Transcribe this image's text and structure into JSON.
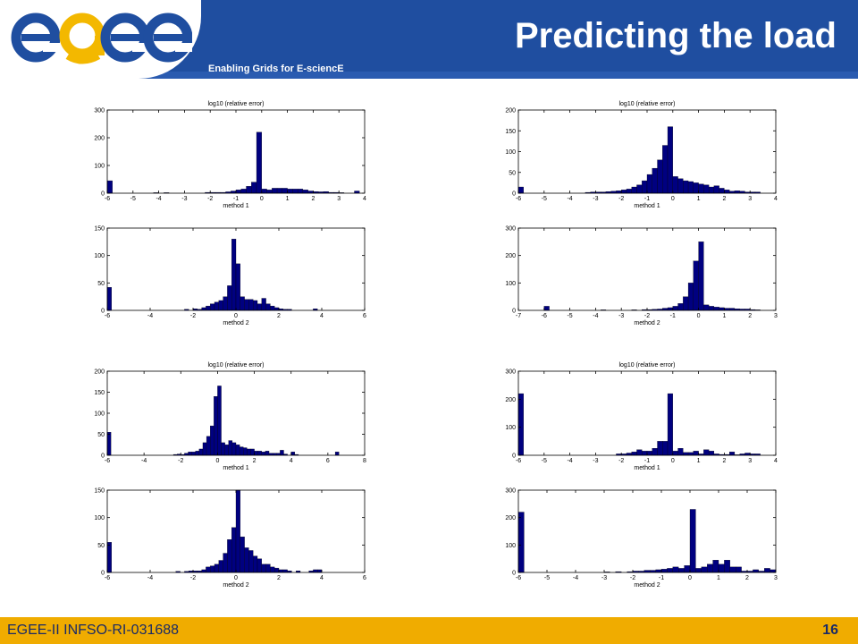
{
  "header": {
    "logo_text": "egee",
    "tagline": "Enabling Grids for E-sciencE",
    "title": "Predicting the load"
  },
  "footer": {
    "left_text": "EGEE-II INFSO-RI-031688",
    "page_number": "16"
  },
  "colors": {
    "header_blue": "#1f4ea0",
    "footer_gold": "#f0ac00",
    "bar_fill": "#000080",
    "logo_blue": "#1f4ea0",
    "logo_yellow": "#f3b800"
  },
  "chart_data": [
    {
      "type": "bar",
      "title": "log10 (relative error)",
      "xlabel": "method 1",
      "xlim": [
        -6,
        4
      ],
      "ylim": [
        0,
        300
      ],
      "xticks": [
        "-6",
        "-5",
        "-4",
        "-3",
        "-2",
        "-1",
        "0",
        "1",
        "2",
        "3",
        "4"
      ],
      "yticks": [
        "0",
        "100",
        "200",
        "300"
      ],
      "bin_width": 0.2,
      "x": [
        -5.9,
        -4.1,
        -3.7,
        -2.1,
        -1.9,
        -1.7,
        -1.5,
        -1.3,
        -1.1,
        -0.9,
        -0.7,
        -0.5,
        -0.3,
        -0.1,
        0.1,
        0.3,
        0.5,
        0.7,
        0.9,
        1.1,
        1.3,
        1.5,
        1.7,
        1.9,
        2.1,
        2.3,
        2.5,
        2.7,
        2.9,
        3.1,
        3.7
      ],
      "values": [
        45,
        2,
        2,
        3,
        3,
        3,
        3,
        5,
        8,
        12,
        15,
        25,
        40,
        220,
        15,
        12,
        18,
        18,
        18,
        15,
        15,
        15,
        12,
        8,
        6,
        5,
        6,
        3,
        3,
        2,
        8
      ]
    },
    {
      "type": "bar",
      "title": "log10 (relative error)",
      "xlabel": "method 1",
      "xlim": [
        -6,
        4
      ],
      "ylim": [
        0,
        200
      ],
      "xticks": [
        "-6",
        "-5",
        "-4",
        "-3",
        "-2",
        "-1",
        "0",
        "1",
        "2",
        "3",
        "4"
      ],
      "yticks": [
        "0",
        "50",
        "100",
        "150",
        "200"
      ],
      "bin_width": 0.2,
      "x": [
        -5.9,
        -3.3,
        -3.1,
        -2.9,
        -2.7,
        -2.5,
        -2.3,
        -2.1,
        -1.9,
        -1.7,
        -1.5,
        -1.3,
        -1.1,
        -0.9,
        -0.7,
        -0.5,
        -0.3,
        -0.1,
        0.1,
        0.3,
        0.5,
        0.7,
        0.9,
        1.1,
        1.3,
        1.5,
        1.7,
        1.9,
        2.1,
        2.3,
        2.5,
        2.7,
        2.9,
        3.1,
        3.3
      ],
      "values": [
        15,
        2,
        3,
        3,
        3,
        4,
        5,
        6,
        8,
        10,
        15,
        20,
        30,
        45,
        60,
        80,
        115,
        160,
        40,
        35,
        30,
        28,
        25,
        22,
        20,
        15,
        18,
        12,
        8,
        5,
        6,
        5,
        3,
        3,
        3
      ]
    },
    {
      "type": "bar",
      "title": "",
      "xlabel": "method 2",
      "xlim": [
        -6,
        6
      ],
      "ylim": [
        0,
        150
      ],
      "xticks": [
        "-6",
        "-4",
        "-2",
        "0",
        "2",
        "4",
        "6"
      ],
      "yticks": [
        "0",
        "50",
        "100",
        "150"
      ],
      "bin_width": 0.2,
      "x": [
        -5.9,
        -2.3,
        -1.9,
        -1.7,
        -1.5,
        -1.3,
        -1.1,
        -0.9,
        -0.7,
        -0.5,
        -0.3,
        -0.1,
        0.1,
        0.3,
        0.5,
        0.7,
        0.9,
        1.1,
        1.3,
        1.5,
        1.7,
        1.9,
        2.1,
        2.3,
        2.5,
        3.7
      ],
      "values": [
        42,
        2,
        3,
        2,
        5,
        8,
        12,
        15,
        18,
        25,
        45,
        130,
        85,
        25,
        20,
        20,
        18,
        12,
        22,
        12,
        8,
        5,
        3,
        2,
        2,
        3
      ]
    },
    {
      "type": "bar",
      "title": "",
      "xlabel": "method 2",
      "xlim": [
        -7,
        3
      ],
      "ylim": [
        0,
        300
      ],
      "xticks": [
        "-7",
        "-6",
        "-5",
        "-4",
        "-3",
        "-2",
        "-1",
        "0",
        "1",
        "2",
        "3"
      ],
      "yticks": [
        "0",
        "100",
        "200",
        "300"
      ],
      "bin_width": 0.2,
      "x": [
        -5.9,
        -3.7,
        -2.5,
        -2.1,
        -1.9,
        -1.7,
        -1.5,
        -1.3,
        -1.1,
        -0.9,
        -0.7,
        -0.5,
        -0.3,
        -0.1,
        0.1,
        0.3,
        0.5,
        0.7,
        0.9,
        1.1,
        1.3,
        1.5,
        1.7,
        1.9,
        2.1,
        2.3
      ],
      "values": [
        15,
        2,
        2,
        3,
        3,
        4,
        5,
        8,
        10,
        15,
        25,
        50,
        100,
        180,
        250,
        20,
        15,
        12,
        10,
        8,
        8,
        6,
        5,
        5,
        3,
        2
      ]
    },
    {
      "type": "bar",
      "title": "log10 (relative error)",
      "xlabel": "method 1",
      "xlim": [
        -6,
        8
      ],
      "ylim": [
        0,
        200
      ],
      "xticks": [
        "-6",
        "-4",
        "-2",
        "0",
        "2",
        "4",
        "6",
        "8"
      ],
      "yticks": [
        "0",
        "50",
        "100",
        "150",
        "200"
      ],
      "bin_width": 0.2,
      "x": [
        -5.9,
        -2.3,
        -2.1,
        -1.9,
        -1.7,
        -1.5,
        -1.3,
        -1.1,
        -0.9,
        -0.7,
        -0.5,
        -0.3,
        -0.1,
        0.1,
        0.3,
        0.5,
        0.7,
        0.9,
        1.1,
        1.3,
        1.5,
        1.7,
        1.9,
        2.1,
        2.3,
        2.5,
        2.7,
        2.9,
        3.1,
        3.3,
        3.5,
        3.7,
        4.1,
        4.3,
        6.5
      ],
      "values": [
        55,
        2,
        3,
        2,
        5,
        8,
        8,
        10,
        15,
        30,
        45,
        70,
        140,
        165,
        30,
        25,
        35,
        30,
        25,
        20,
        18,
        15,
        15,
        10,
        10,
        8,
        10,
        5,
        5,
        5,
        12,
        3,
        8,
        2,
        8
      ]
    },
    {
      "type": "bar",
      "title": "log10 (relative error)",
      "xlabel": "method 1",
      "xlim": [
        -6,
        4
      ],
      "ylim": [
        0,
        300
      ],
      "xticks": [
        "-6",
        "-5",
        "-4",
        "-3",
        "-2",
        "-1",
        "0",
        "1",
        "2",
        "3",
        "4"
      ],
      "yticks": [
        "0",
        "100",
        "200",
        "300"
      ],
      "bin_width": 0.2,
      "x": [
        -5.9,
        -2.1,
        -1.9,
        -1.7,
        -1.5,
        -1.3,
        -1.1,
        -0.9,
        -0.7,
        -0.5,
        -0.3,
        -0.1,
        0.1,
        0.3,
        0.5,
        0.7,
        0.9,
        1.1,
        1.3,
        1.5,
        1.7,
        1.9,
        2.1,
        2.3,
        2.5,
        2.7,
        2.9,
        3.1,
        3.3
      ],
      "values": [
        220,
        5,
        5,
        8,
        12,
        20,
        15,
        15,
        25,
        50,
        50,
        220,
        15,
        25,
        10,
        10,
        15,
        5,
        20,
        15,
        5,
        3,
        3,
        12,
        2,
        5,
        8,
        5,
        5
      ]
    },
    {
      "type": "bar",
      "title": "",
      "xlabel": "method 2",
      "xlim": [
        -6,
        6
      ],
      "ylim": [
        0,
        150
      ],
      "xticks": [
        "-6",
        "-4",
        "-2",
        "0",
        "2",
        "4",
        "6"
      ],
      "yticks": [
        "0",
        "50",
        "100",
        "150"
      ],
      "bin_width": 0.2,
      "x": [
        -5.9,
        -2.7,
        -2.3,
        -2.1,
        -1.9,
        -1.7,
        -1.5,
        -1.3,
        -1.1,
        -0.9,
        -0.7,
        -0.5,
        -0.3,
        -0.1,
        0.1,
        0.3,
        0.5,
        0.7,
        0.9,
        1.1,
        1.3,
        1.5,
        1.7,
        1.9,
        2.1,
        2.3,
        2.5,
        2.9,
        3.5,
        3.7,
        3.9
      ],
      "values": [
        55,
        2,
        2,
        3,
        3,
        3,
        5,
        10,
        12,
        15,
        22,
        35,
        60,
        82,
        150,
        65,
        45,
        40,
        30,
        25,
        15,
        15,
        10,
        8,
        5,
        5,
        3,
        3,
        3,
        5,
        5
      ]
    },
    {
      "type": "bar",
      "title": "",
      "xlabel": "method 2",
      "xlim": [
        -6,
        3
      ],
      "ylim": [
        0,
        300
      ],
      "xticks": [
        "-6",
        "-5",
        "-4",
        "-3",
        "-2",
        "-1",
        "0",
        "1",
        "2",
        "3"
      ],
      "yticks": [
        "0",
        "100",
        "200",
        "300"
      ],
      "bin_width": 0.2,
      "x": [
        -5.9,
        -2.9,
        -2.5,
        -2.1,
        -1.9,
        -1.7,
        -1.5,
        -1.3,
        -1.1,
        -0.9,
        -0.7,
        -0.5,
        -0.3,
        -0.1,
        0.1,
        0.3,
        0.5,
        0.7,
        0.9,
        1.1,
        1.3,
        1.5,
        1.7,
        1.9,
        2.1,
        2.3,
        2.5,
        2.7,
        2.9
      ],
      "values": [
        220,
        2,
        3,
        3,
        5,
        5,
        8,
        8,
        10,
        12,
        15,
        20,
        15,
        25,
        230,
        15,
        20,
        30,
        45,
        30,
        45,
        20,
        20,
        5,
        5,
        10,
        5,
        15,
        10
      ]
    }
  ]
}
